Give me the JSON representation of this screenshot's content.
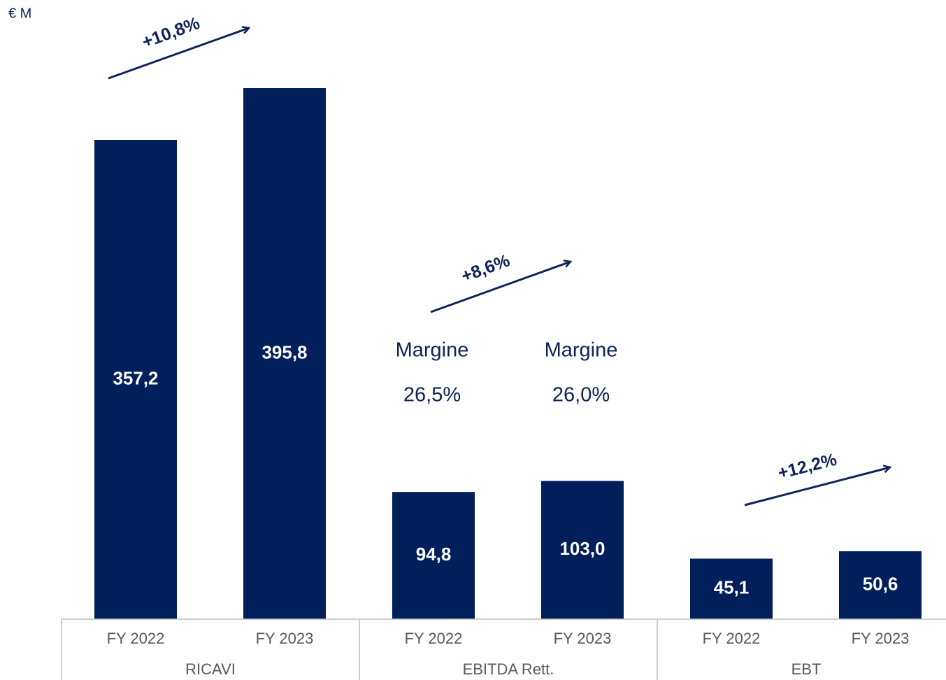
{
  "chart_data": {
    "type": "bar",
    "unit_label": "€ M",
    "categories": [
      "FY 2022",
      "FY 2023",
      "FY 2022",
      "FY 2023",
      "FY 2022",
      "FY 2023"
    ],
    "groups": [
      "RICAVI",
      "EBITDA Rett.",
      "EBT"
    ],
    "values": [
      357.2,
      395.8,
      94.8,
      103.0,
      45.1,
      50.6
    ],
    "value_labels": [
      "357,2",
      "395,8",
      "94,8",
      "103,0",
      "45,1",
      "50,6"
    ],
    "color": "#001f5b",
    "growth_labels": [
      "+10,8%",
      "+8,6%",
      "+12,2%"
    ],
    "margins": [
      {
        "label": "Margine",
        "value": "26,5%"
      },
      {
        "label": "Margine",
        "value": "26,0%"
      }
    ]
  }
}
